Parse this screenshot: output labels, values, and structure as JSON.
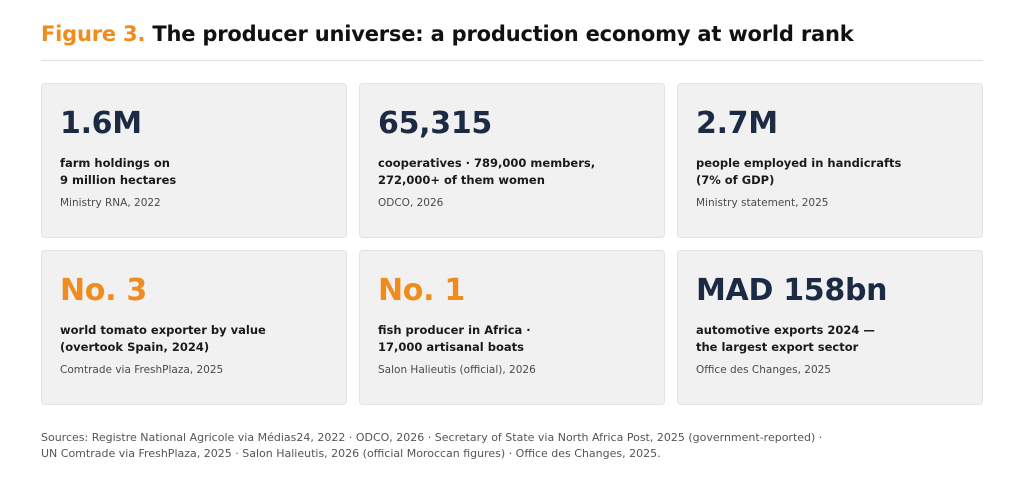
{
  "header": {
    "figure_label": "Figure 3.",
    "title": "The producer universe: a production economy at world rank"
  },
  "colors": {
    "accent": "#f08c1e",
    "navy": "#1c2a44",
    "card_background": "#f1f1f1"
  },
  "cards": [
    {
      "value": "1.6M",
      "value_color": "navy",
      "description": "farm holdings on\n9 million hectares",
      "source": "Ministry RNA, 2022"
    },
    {
      "value": "65,315",
      "value_color": "navy",
      "description": "cooperatives · 789,000 members,\n272,000+ of them women",
      "source": "ODCO, 2026"
    },
    {
      "value": "2.7M",
      "value_color": "navy",
      "description": "people employed in handicrafts\n(7% of GDP)",
      "source": "Ministry statement, 2025"
    },
    {
      "value": "No. 3",
      "value_color": "accent",
      "description": "world tomato exporter by value\n(overtook Spain, 2024)",
      "source": "Comtrade via FreshPlaza, 2025"
    },
    {
      "value": "No. 1",
      "value_color": "accent",
      "description": "fish producer in Africa ·\n17,000 artisanal boats",
      "source": "Salon Halieutis (official), 2026"
    },
    {
      "value": "MAD 158bn",
      "value_color": "navy",
      "description": "automotive exports 2024 —\nthe largest export sector",
      "source": "Office des Changes, 2025"
    }
  ],
  "footer": {
    "sources_line1": "Sources: Registre National Agricole via Médias24, 2022 · ODCO, 2026 · Secretary of State via North Africa Post, 2025 (government-reported) ·",
    "sources_line2": "UN Comtrade via FreshPlaza, 2025 · Salon Halieutis, 2026 (official Moroccan figures) · Office des Changes, 2025."
  }
}
